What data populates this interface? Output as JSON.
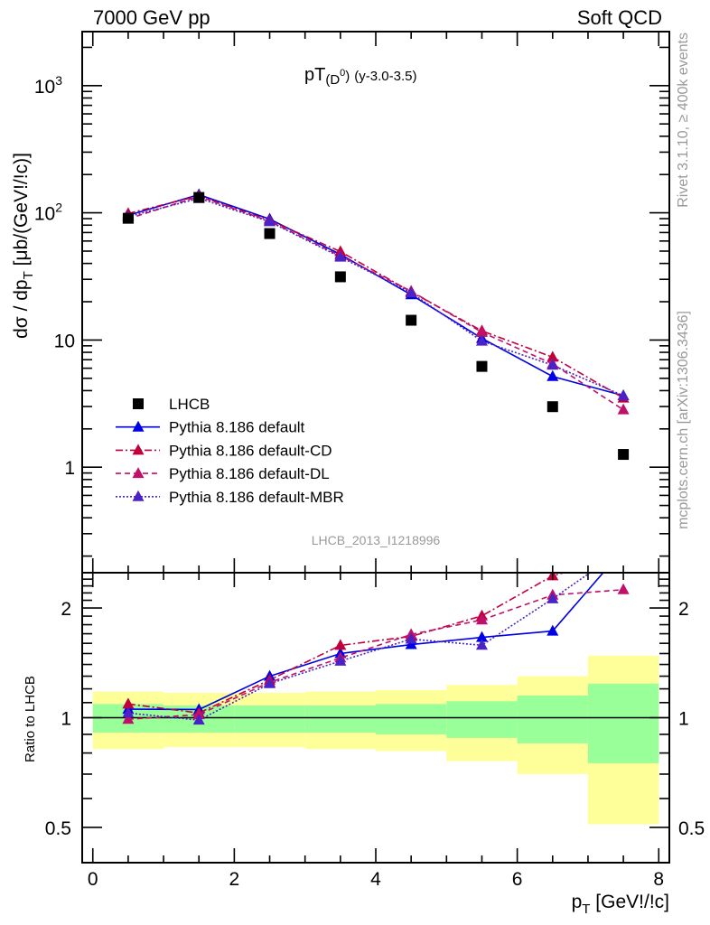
{
  "header": {
    "left": "7000 GeV pp",
    "right": "Soft QCD"
  },
  "side_text": {
    "rivet": "Rivet 3.1.10, ≥ 400k events",
    "mcplots": "mcplots.cern.ch [arXiv:1306.3436]"
  },
  "watermark": "LHCB_2013_I1218996",
  "colors": {
    "data": "#000000",
    "default": "#0000e6",
    "cd": "#c0003c",
    "dl": "#c0106a",
    "mbr": "#4a22c8",
    "band_outer": "#ffff99",
    "band_inner": "#99ff99"
  },
  "chart_data": [
    {
      "type": "line",
      "title": {
        "main": "pT",
        "sub": "(D",
        "sup": "0",
        "close": ")",
        "suffix": "(y-3.0-3.5)"
      },
      "ylabel": {
        "pre": "dσ / dp",
        "sub": "T",
        "post": " [μb/(GeV!/!c)]"
      },
      "yscale": "log",
      "ylim": [
        0.148,
        2660
      ],
      "xlim": [
        -0.15,
        8.15
      ],
      "yticks": [
        {
          "v": 1000,
          "base": "10",
          "exp": "3"
        },
        {
          "v": 100,
          "base": "10",
          "exp": "2"
        },
        {
          "v": 10,
          "base": "10",
          "exp": ""
        },
        {
          "v": 1,
          "base": "1",
          "exp": ""
        }
      ],
      "x": [
        0.5,
        1.5,
        2.5,
        3.5,
        4.5,
        5.5,
        6.5,
        7.5
      ],
      "legend_position": "bottom-left",
      "series": [
        {
          "key": "data",
          "name": "LHCB",
          "style": "marker",
          "values": [
            90.6,
            132,
            68.7,
            31.4,
            14.3,
            6.2,
            2.99,
            1.26
          ]
        },
        {
          "key": "default",
          "name": "Pythia 8.186 default",
          "style": "solid",
          "values": [
            95.6,
            139,
            89.3,
            47.1,
            22.7,
            10.3,
            5.17,
            3.65
          ]
        },
        {
          "key": "cd",
          "name": "Pythia 8.186 default-CD",
          "style": "dashdot",
          "values": [
            98.8,
            136,
            87.2,
            49.6,
            23.9,
            11.8,
            7.33,
            3.5
          ]
        },
        {
          "key": "dl",
          "name": "Pythia 8.186 default-DL",
          "style": "dashed",
          "values": [
            89.7,
            134.6,
            85.9,
            45.8,
            24.2,
            11.5,
            6.49,
            2.83
          ]
        },
        {
          "key": "mbr",
          "name": "Pythia 8.186 default-MBR",
          "style": "dotted",
          "values": [
            93.3,
            130,
            85.2,
            44.9,
            23.5,
            9.8,
            6.34,
            3.65
          ]
        }
      ]
    },
    {
      "type": "line",
      "ylabel": "Ratio to LHCB",
      "xlabel": {
        "pre": "p",
        "sub": "T",
        "post": " [GeV!/!c]"
      },
      "yscale": "log",
      "ylim": [
        0.4,
        2.5
      ],
      "yticks": [
        {
          "v": 2,
          "label": "2"
        },
        {
          "v": 1,
          "label": "1"
        },
        {
          "v": 0.5,
          "label": "0.5"
        }
      ],
      "xticks": [
        {
          "v": 0,
          "label": "0"
        },
        {
          "v": 2,
          "label": "2"
        },
        {
          "v": 4,
          "label": "4"
        },
        {
          "v": 6,
          "label": "6"
        },
        {
          "v": 8,
          "label": "8"
        }
      ],
      "bins": [
        [
          0,
          1
        ],
        [
          1,
          2
        ],
        [
          2,
          3
        ],
        [
          3,
          4
        ],
        [
          4,
          5
        ],
        [
          5,
          6
        ],
        [
          6,
          7
        ],
        [
          7,
          8
        ]
      ],
      "band_outer": {
        "low": [
          0.82,
          0.83,
          0.83,
          0.82,
          0.81,
          0.76,
          0.7,
          0.51
        ],
        "high": [
          1.18,
          1.17,
          1.17,
          1.18,
          1.19,
          1.23,
          1.3,
          1.48
        ]
      },
      "band_inner": {
        "low": [
          0.91,
          0.91,
          0.91,
          0.91,
          0.9,
          0.88,
          0.85,
          0.75
        ],
        "high": [
          1.09,
          1.08,
          1.08,
          1.08,
          1.09,
          1.11,
          1.15,
          1.24
        ]
      }
    }
  ]
}
